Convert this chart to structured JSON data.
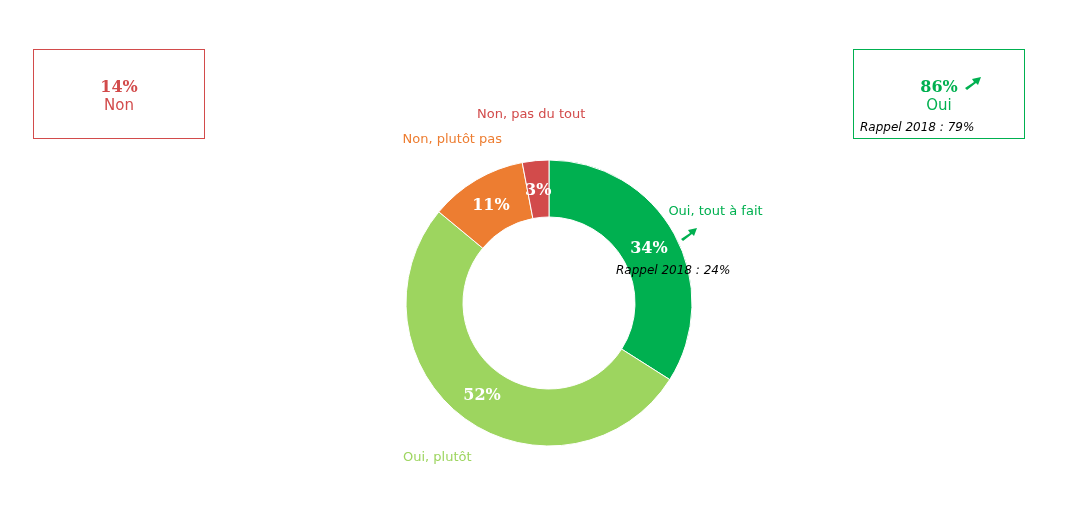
{
  "chart_data": {
    "type": "donut",
    "categories": [
      "Oui, tout à fait",
      "Oui, plutôt",
      "Non, plutôt pas",
      "Non, pas du tout"
    ],
    "values": [
      34,
      52,
      11,
      3
    ],
    "value_labels": [
      "34%",
      "52%",
      "11%",
      "3%"
    ],
    "colors": [
      "#00b050",
      "#9dd55f",
      "#ed7d31",
      "#d24b4b"
    ],
    "annotations": [
      "14%",
      "Non",
      "86%",
      "Oui",
      "Rappel 2018 : 79%",
      "Rappel 2018 : 24%"
    ]
  }
}
